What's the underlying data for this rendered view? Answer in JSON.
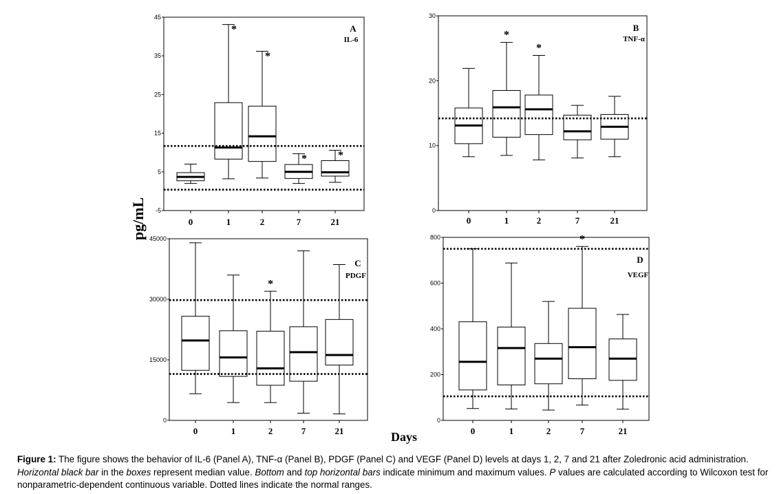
{
  "figure": {
    "ylabel": "pg/mL",
    "xlabel": "Days"
  },
  "chart_data": [
    {
      "type": "box",
      "panel": "A",
      "title": "IL-6",
      "categories": [
        "0",
        "1",
        "2",
        "7",
        "21"
      ],
      "yticks": [
        "45",
        "35",
        "25",
        "15",
        "5",
        "-5"
      ],
      "ylim": [
        -5,
        45
      ],
      "boxes": [
        {
          "min": 2.0,
          "q1": 2.7,
          "median": 3.7,
          "q3": 4.8,
          "max": 7.0,
          "star": ""
        },
        {
          "min": 3.2,
          "q1": 8.3,
          "median": 11.3,
          "q3": 22.9,
          "max": 43.1,
          "star": "*"
        },
        {
          "min": 3.4,
          "q1": 7.7,
          "median": 14.2,
          "q3": 22.0,
          "max": 36.2,
          "star": "*"
        },
        {
          "min": 2.0,
          "q1": 3.3,
          "median": 5.0,
          "q3": 6.9,
          "max": 9.7,
          "star": "*"
        },
        {
          "min": 2.3,
          "q1": 3.9,
          "median": 4.9,
          "q3": 7.9,
          "max": 10.6,
          "star": "*"
        }
      ],
      "normal_range": [
        0.4,
        11.7
      ]
    },
    {
      "type": "box",
      "panel": "B",
      "title": "TNF-α",
      "categories": [
        "0",
        "1",
        "2",
        "7",
        "21"
      ],
      "yticks": [
        "30",
        "20",
        "10",
        "0"
      ],
      "ylim": [
        0,
        30
      ],
      "boxes": [
        {
          "min": 8.3,
          "q1": 10.3,
          "median": 13.1,
          "q3": 15.8,
          "max": 21.9,
          "star": ""
        },
        {
          "min": 8.5,
          "q1": 11.3,
          "median": 15.9,
          "q3": 18.5,
          "max": 25.9,
          "star": "*"
        },
        {
          "min": 7.8,
          "q1": 11.7,
          "median": 15.6,
          "q3": 17.8,
          "max": 23.9,
          "star": "*"
        },
        {
          "min": 8.1,
          "q1": 10.9,
          "median": 12.2,
          "q3": 14.7,
          "max": 16.2,
          "star": ""
        },
        {
          "min": 8.3,
          "q1": 11.0,
          "median": 12.9,
          "q3": 14.8,
          "max": 17.6,
          "star": ""
        }
      ],
      "normal_range": [
        14.2,
        14.2
      ]
    },
    {
      "type": "box",
      "panel": "C",
      "title": "PDGF",
      "categories": [
        "0",
        "1",
        "2",
        "7",
        "21"
      ],
      "yticks": [
        "45000",
        "30000",
        "15000",
        "0"
      ],
      "ylim": [
        0,
        45000
      ],
      "boxes": [
        {
          "min": 6600,
          "q1": 12400,
          "median": 19800,
          "q3": 25800,
          "max": 44000,
          "star": ""
        },
        {
          "min": 4400,
          "q1": 10900,
          "median": 15600,
          "q3": 22200,
          "max": 36000,
          "star": ""
        },
        {
          "min": 4400,
          "q1": 8700,
          "median": 12900,
          "q3": 22100,
          "max": 32000,
          "star": "*"
        },
        {
          "min": 1800,
          "q1": 9700,
          "median": 16900,
          "q3": 23200,
          "max": 42000,
          "star": ""
        },
        {
          "min": 1600,
          "q1": 13700,
          "median": 16200,
          "q3": 25000,
          "max": 38600,
          "star": ""
        }
      ],
      "normal_range": [
        11500,
        29800
      ]
    },
    {
      "type": "box",
      "panel": "D",
      "title": "VEGF",
      "categories": [
        "0",
        "1",
        "2",
        "7",
        "21"
      ],
      "yticks": [
        "800",
        "600",
        "400",
        "200",
        "0"
      ],
      "ylim": [
        0,
        800
      ],
      "boxes": [
        {
          "min": 52,
          "q1": 133,
          "median": 256,
          "q3": 431,
          "max": 750,
          "star": ""
        },
        {
          "min": 50,
          "q1": 155,
          "median": 316,
          "q3": 408,
          "max": 688,
          "star": ""
        },
        {
          "min": 45,
          "q1": 160,
          "median": 270,
          "q3": 336,
          "max": 520,
          "star": ""
        },
        {
          "min": 67,
          "q1": 182,
          "median": 320,
          "q3": 490,
          "max": 760,
          "star": "*"
        },
        {
          "min": 49,
          "q1": 175,
          "median": 270,
          "q3": 356,
          "max": 463,
          "star": ""
        }
      ],
      "normal_range": [
        105,
        750
      ]
    }
  ],
  "caption": {
    "bold": "Figure 1:",
    "part1": " The figure shows the behavior of IL-6 (Panel A), TNF-α (Panel B), PDGF (Panel C) and VEGF (Panel D) levels at days 1, 2, 7 and 21 after Zoledronic acid administration. ",
    "italic1": "Horizontal black bar",
    "part2": " in the ",
    "italic2": "boxes",
    "part3": " represent median value. ",
    "italic3": "Bottom",
    "part4": " and ",
    "italic4": "top horizontal bars",
    "part5": " indicate minimum and maximum values. ",
    "italic5": "P",
    "part6": " values are calculated according to Wilcoxon test for nonparametric-dependent continuous variable. Dotted lines indicate the normal ranges."
  }
}
